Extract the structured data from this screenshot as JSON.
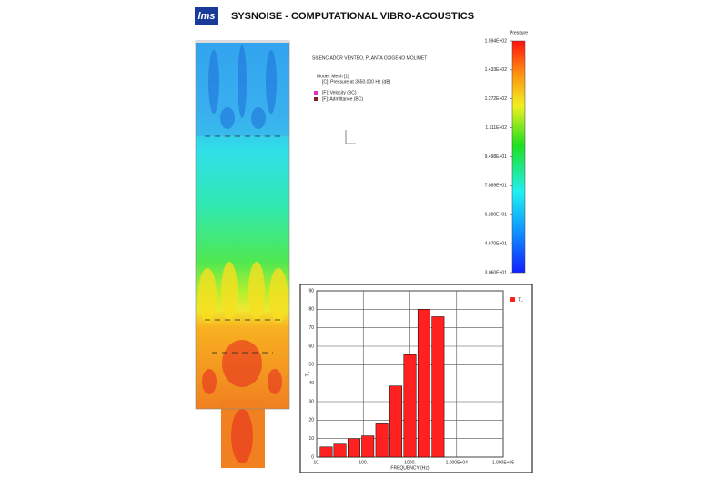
{
  "header": {
    "logo": "lms",
    "title": "SYSNOISE - COMPUTATIONAL VIBRO-ACOUSTICS"
  },
  "annotations": {
    "model_title": "SILENCIADOR VENTEO, PLANTA OXIGENO MOLIMET",
    "model": "Model: Mesh [1]",
    "result": "[C]: Pressure at 3550.000 Hz (dB)",
    "bc1": "[F]: Velocity (BC)",
    "bc2": "[F]: Admittance (BC)"
  },
  "colorbar": {
    "label": "Pressure",
    "lim": [
      30.6,
      159.4
    ],
    "ticks": [
      {
        "value": 159.4,
        "label": "1.594E+02"
      },
      {
        "value": 143.3,
        "label": "1.433E+02"
      },
      {
        "value": 127.2,
        "label": "1.272E+02"
      },
      {
        "value": 111.1,
        "label": "1.111E+02"
      },
      {
        "value": 94.98,
        "label": "9.498E+01"
      },
      {
        "value": 78.89,
        "label": "7.889E+01"
      },
      {
        "value": 62.8,
        "label": "6.280E+01"
      },
      {
        "value": 46.7,
        "label": "4.670E+01"
      },
      {
        "value": 30.6,
        "label": "3.060E+01"
      }
    ]
  },
  "chart_data": {
    "type": "bar",
    "xlabel": "FREQUENCY (Hz)",
    "ylabel": "TL",
    "x": [
      16,
      31.5,
      63,
      125,
      250,
      500,
      1000,
      2000,
      4000
    ],
    "series": [
      {
        "name": "TL",
        "color": "#ff2020",
        "values": [
          5.5,
          7,
          10,
          11.5,
          18,
          38.5,
          55.5,
          80,
          76
        ]
      }
    ],
    "xlim": [
      10,
      100000
    ],
    "xscale": "log",
    "xticks": [
      {
        "value": 10,
        "label": "10."
      },
      {
        "value": 100,
        "label": "100."
      },
      {
        "value": 1000,
        "label": "1000."
      },
      {
        "value": 10000,
        "label": "1.000E+04"
      },
      {
        "value": 100000,
        "label": "1.000E+05"
      }
    ],
    "ylim": [
      0,
      90
    ],
    "yticks": [
      0,
      10,
      20,
      30,
      40,
      50,
      60,
      70,
      80,
      90
    ],
    "grid": true,
    "legend": "right"
  }
}
